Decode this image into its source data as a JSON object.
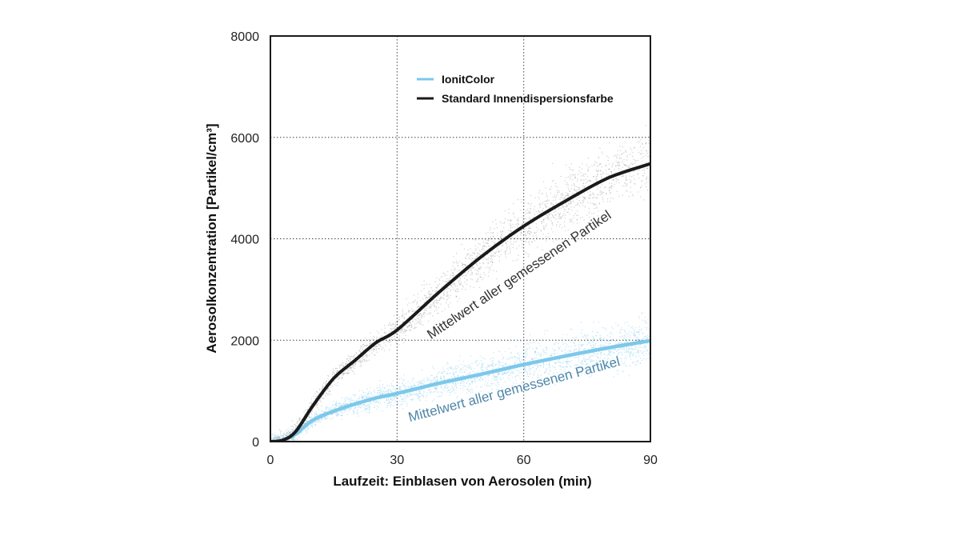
{
  "chart_data": {
    "type": "line",
    "xlabel": "Laufzeit: Einblasen von Aerosolen (min)",
    "ylabel": "Aerosolkonzentration [Partikel/cm³]",
    "xlim": [
      0,
      90
    ],
    "ylim": [
      0,
      8000
    ],
    "x_ticks": [
      "0",
      "30",
      "60",
      "90"
    ],
    "y_ticks": [
      "0",
      "2000",
      "4000",
      "6000",
      "8000"
    ],
    "grid": "dotted",
    "legend_position": "top",
    "series": [
      {
        "name": "IonitColor",
        "color": "#7cc8ea",
        "points": [
          [
            0,
            0
          ],
          [
            3,
            30
          ],
          [
            6,
            150
          ],
          [
            10,
            420
          ],
          [
            15,
            600
          ],
          [
            20,
            740
          ],
          [
            25,
            860
          ],
          [
            30,
            950
          ],
          [
            40,
            1150
          ],
          [
            50,
            1330
          ],
          [
            60,
            1520
          ],
          [
            70,
            1690
          ],
          [
            80,
            1850
          ],
          [
            90,
            1990
          ]
        ]
      },
      {
        "name": "Standard Innendispersionsfarbe",
        "color": "#1a1a1a",
        "points": [
          [
            0,
            0
          ],
          [
            3,
            30
          ],
          [
            6,
            200
          ],
          [
            10,
            700
          ],
          [
            15,
            1250
          ],
          [
            20,
            1600
          ],
          [
            25,
            1950
          ],
          [
            30,
            2200
          ],
          [
            40,
            2950
          ],
          [
            50,
            3650
          ],
          [
            60,
            4250
          ],
          [
            70,
            4750
          ],
          [
            80,
            5200
          ],
          [
            90,
            5480
          ]
        ]
      }
    ],
    "annotations": [
      {
        "text": "Mittelwert aller gemessenen Partikel",
        "series": "Standard Innendispersionsfarbe",
        "color": "#333333"
      },
      {
        "text": "Mittelwert aller gemessenen Partikel",
        "series": "IonitColor",
        "color": "#4e86a8"
      }
    ]
  }
}
